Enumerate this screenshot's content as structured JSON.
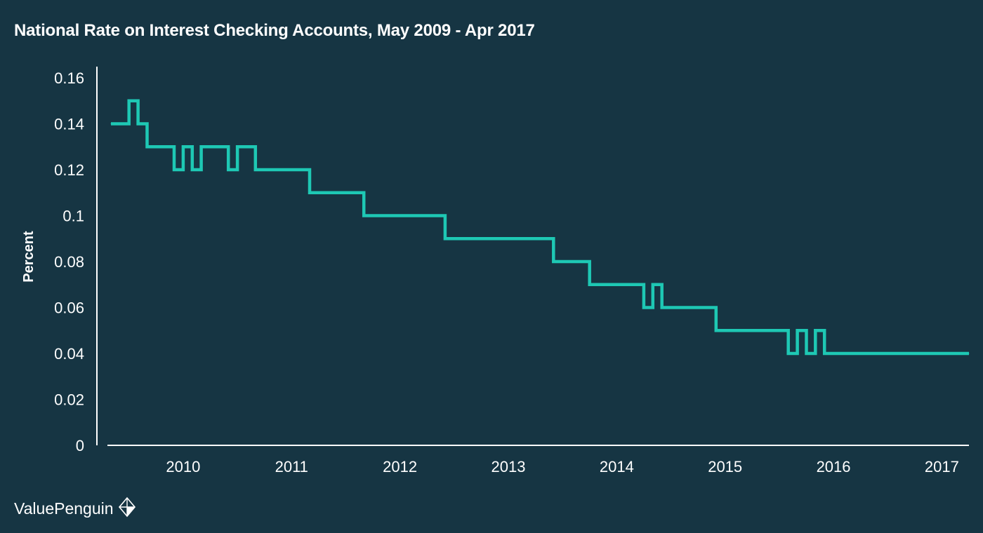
{
  "title": "National Rate on Interest Checking Accounts, May 2009 - Apr 2017",
  "brand": {
    "name": "ValuePenguin",
    "icon": "penguin-logo-icon"
  },
  "colors": {
    "background": "#163543",
    "line": "#1ec8b4",
    "axis": "#ffffff",
    "text": "#ffffff"
  },
  "chart_data": {
    "type": "line",
    "title": "National Rate on Interest Checking Accounts, May 2009 - Apr 2017",
    "xlabel": "",
    "ylabel": "Percent",
    "x_range": [
      "2009-05",
      "2017-04"
    ],
    "ylim": [
      0,
      0.16
    ],
    "y_ticks": [
      0,
      0.02,
      0.04,
      0.06,
      0.08,
      0.1,
      0.12,
      0.14,
      0.16
    ],
    "y_tick_labels": [
      "0",
      "0.02",
      "0.04",
      "0.06",
      "0.08",
      "0.1",
      "0.12",
      "0.14",
      "0.16"
    ],
    "x_ticks": [
      "2010",
      "2011",
      "2012",
      "2013",
      "2014",
      "2015",
      "2016",
      "2017"
    ],
    "grid": false,
    "legend": "none",
    "series": [
      {
        "values": [
          [
            "2009-05",
            0.14
          ],
          [
            "2009-06",
            0.14
          ],
          [
            "2009-07",
            0.15
          ],
          [
            "2009-08",
            0.14
          ],
          [
            "2009-09",
            0.13
          ],
          [
            "2009-10",
            0.13
          ],
          [
            "2009-11",
            0.13
          ],
          [
            "2009-12",
            0.12
          ],
          [
            "2010-01",
            0.13
          ],
          [
            "2010-02",
            0.12
          ],
          [
            "2010-03",
            0.13
          ],
          [
            "2010-04",
            0.13
          ],
          [
            "2010-05",
            0.13
          ],
          [
            "2010-06",
            0.12
          ],
          [
            "2010-07",
            0.13
          ],
          [
            "2010-08",
            0.13
          ],
          [
            "2010-09",
            0.12
          ],
          [
            "2010-10",
            0.12
          ],
          [
            "2010-11",
            0.12
          ],
          [
            "2010-12",
            0.12
          ],
          [
            "2011-01",
            0.12
          ],
          [
            "2011-02",
            0.12
          ],
          [
            "2011-03",
            0.11
          ],
          [
            "2011-04",
            0.11
          ],
          [
            "2011-05",
            0.11
          ],
          [
            "2011-06",
            0.11
          ],
          [
            "2011-07",
            0.11
          ],
          [
            "2011-08",
            0.11
          ],
          [
            "2011-09",
            0.1
          ],
          [
            "2011-10",
            0.1
          ],
          [
            "2011-11",
            0.1
          ],
          [
            "2011-12",
            0.1
          ],
          [
            "2012-01",
            0.1
          ],
          [
            "2012-02",
            0.1
          ],
          [
            "2012-03",
            0.1
          ],
          [
            "2012-04",
            0.1
          ],
          [
            "2012-05",
            0.1
          ],
          [
            "2012-06",
            0.09
          ],
          [
            "2012-07",
            0.09
          ],
          [
            "2012-08",
            0.09
          ],
          [
            "2012-09",
            0.09
          ],
          [
            "2012-10",
            0.09
          ],
          [
            "2012-11",
            0.09
          ],
          [
            "2012-12",
            0.09
          ],
          [
            "2013-01",
            0.09
          ],
          [
            "2013-02",
            0.09
          ],
          [
            "2013-03",
            0.09
          ],
          [
            "2013-04",
            0.09
          ],
          [
            "2013-05",
            0.09
          ],
          [
            "2013-06",
            0.08
          ],
          [
            "2013-07",
            0.08
          ],
          [
            "2013-08",
            0.08
          ],
          [
            "2013-09",
            0.08
          ],
          [
            "2013-10",
            0.07
          ],
          [
            "2013-11",
            0.07
          ],
          [
            "2013-12",
            0.07
          ],
          [
            "2014-01",
            0.07
          ],
          [
            "2014-02",
            0.07
          ],
          [
            "2014-03",
            0.07
          ],
          [
            "2014-04",
            0.06
          ],
          [
            "2014-05",
            0.07
          ],
          [
            "2014-06",
            0.06
          ],
          [
            "2014-07",
            0.06
          ],
          [
            "2014-08",
            0.06
          ],
          [
            "2014-09",
            0.06
          ],
          [
            "2014-10",
            0.06
          ],
          [
            "2014-11",
            0.06
          ],
          [
            "2014-12",
            0.05
          ],
          [
            "2015-01",
            0.05
          ],
          [
            "2015-02",
            0.05
          ],
          [
            "2015-03",
            0.05
          ],
          [
            "2015-04",
            0.05
          ],
          [
            "2015-05",
            0.05
          ],
          [
            "2015-06",
            0.05
          ],
          [
            "2015-07",
            0.05
          ],
          [
            "2015-08",
            0.04
          ],
          [
            "2015-09",
            0.05
          ],
          [
            "2015-10",
            0.04
          ],
          [
            "2015-11",
            0.05
          ],
          [
            "2015-12",
            0.04
          ],
          [
            "2016-01",
            0.04
          ],
          [
            "2016-02",
            0.04
          ],
          [
            "2016-03",
            0.04
          ],
          [
            "2016-04",
            0.04
          ],
          [
            "2016-05",
            0.04
          ],
          [
            "2016-06",
            0.04
          ],
          [
            "2016-07",
            0.04
          ],
          [
            "2016-08",
            0.04
          ],
          [
            "2016-09",
            0.04
          ],
          [
            "2016-10",
            0.04
          ],
          [
            "2016-11",
            0.04
          ],
          [
            "2016-12",
            0.04
          ],
          [
            "2017-01",
            0.04
          ],
          [
            "2017-02",
            0.04
          ],
          [
            "2017-03",
            0.04
          ],
          [
            "2017-04",
            0.04
          ]
        ]
      }
    ]
  }
}
